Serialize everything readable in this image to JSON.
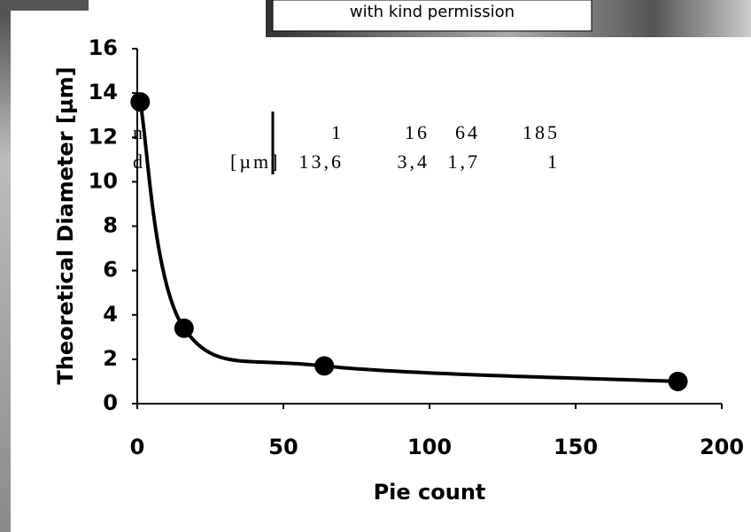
{
  "credit": "with kind permission",
  "inset_table": {
    "rows": [
      [
        "n",
        "",
        "1",
        "16",
        "64",
        "185"
      ],
      [
        "d",
        "[µm]",
        "13,6",
        "3,4",
        "1,7",
        "1"
      ]
    ]
  },
  "chart_data": {
    "type": "line",
    "smooth": true,
    "markers": true,
    "color": "#000000",
    "x": [
      1,
      16,
      64,
      185
    ],
    "values": [
      13.6,
      3.4,
      1.7,
      1
    ],
    "xlabel": "Pie count",
    "ylabel": "Theoretical Diameter [µm]",
    "xlim": [
      0,
      200
    ],
    "xticks": [
      0,
      50,
      100,
      150,
      200
    ],
    "ylim": [
      0,
      16
    ],
    "yticks": [
      0,
      2,
      4,
      6,
      8,
      10,
      12,
      14,
      16
    ]
  }
}
